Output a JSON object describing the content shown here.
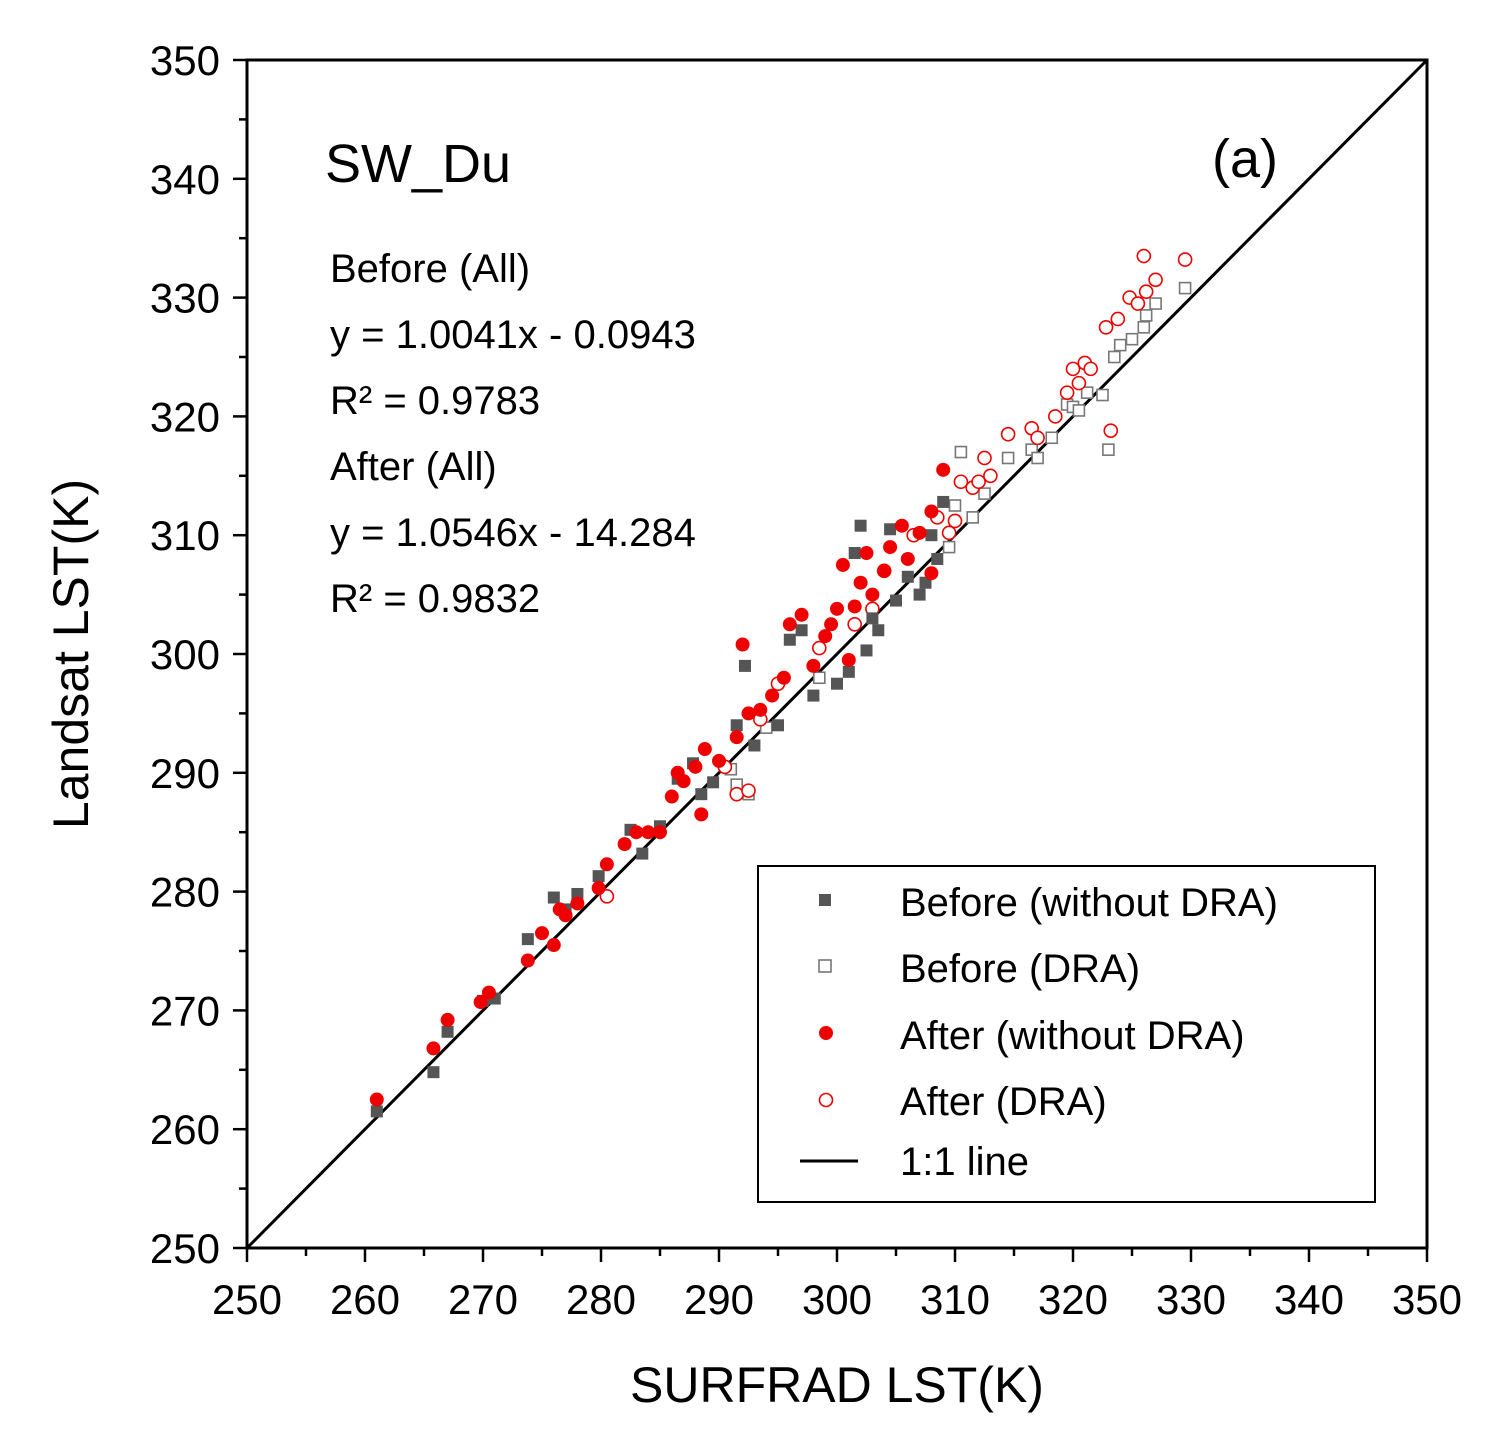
{
  "chart_data": {
    "type": "scatter",
    "title": "SW_Du",
    "panel_label": "(a)",
    "xlabel": "SURFRAD LST(K)",
    "ylabel": "Landsat LST(K)",
    "xlim": [
      250,
      350
    ],
    "ylim": [
      250,
      350
    ],
    "xticks": [
      "250",
      "260",
      "270",
      "280",
      "290",
      "300",
      "310",
      "320",
      "330",
      "340",
      "350"
    ],
    "yticks": [
      "250",
      "260",
      "270",
      "280",
      "290",
      "300",
      "310",
      "320",
      "330",
      "340",
      "350"
    ],
    "annotations": [
      "Before (All)",
      "y = 1.0041x - 0.0943",
      "R² = 0.9783",
      "After (All)",
      "y = 1.0546x - 14.284",
      "R² = 0.9832"
    ],
    "legend": [
      {
        "label": "Before (without DRA)",
        "marker": "filled-square"
      },
      {
        "label": "Before (DRA)",
        "marker": "open-square"
      },
      {
        "label": "After (without DRA)",
        "marker": "filled-circle"
      },
      {
        "label": "After (DRA)",
        "marker": "open-circle"
      },
      {
        "label": "1:1 line",
        "marker": "line"
      }
    ],
    "legend_position": "bottom-right",
    "colors": {
      "before": "#555555",
      "before_dra": "#777777",
      "after": "#ee0000",
      "line": "#000000"
    },
    "series": [
      {
        "name": "Before (without DRA)",
        "points": [
          [
            261,
            261.5
          ],
          [
            265.8,
            264.8
          ],
          [
            267,
            268.2
          ],
          [
            270,
            270.8
          ],
          [
            271,
            271
          ],
          [
            273.8,
            276
          ],
          [
            276,
            279.5
          ],
          [
            277,
            278.5
          ],
          [
            278,
            279.8
          ],
          [
            279.8,
            281.3
          ],
          [
            282.5,
            285.2
          ],
          [
            283.5,
            283.2
          ],
          [
            285,
            285.5
          ],
          [
            286.5,
            289.5
          ],
          [
            287.8,
            290.8
          ],
          [
            288.5,
            288.2
          ],
          [
            289.5,
            289.2
          ],
          [
            291.5,
            294
          ],
          [
            292.2,
            299
          ],
          [
            293,
            292.3
          ],
          [
            295,
            294
          ],
          [
            296,
            301.2
          ],
          [
            297,
            302
          ],
          [
            298,
            296.5
          ],
          [
            300,
            297.5
          ],
          [
            301,
            298.5
          ],
          [
            301.5,
            308.5
          ],
          [
            302,
            310.8
          ],
          [
            302.5,
            300.3
          ],
          [
            303,
            303
          ],
          [
            303.5,
            302
          ],
          [
            304.5,
            310.5
          ],
          [
            305,
            304.5
          ],
          [
            306,
            306.5
          ],
          [
            307,
            305
          ],
          [
            307.5,
            306
          ],
          [
            308,
            310
          ],
          [
            308.5,
            308
          ],
          [
            309,
            312.8
          ]
        ]
      },
      {
        "name": "Before (DRA)",
        "points": [
          [
            291,
            290.3
          ],
          [
            291.5,
            289
          ],
          [
            292.5,
            288.2
          ],
          [
            294,
            293.8
          ],
          [
            298.5,
            298
          ],
          [
            309.5,
            309
          ],
          [
            310,
            312.5
          ],
          [
            310.5,
            317
          ],
          [
            311.5,
            311.5
          ],
          [
            312.5,
            313.5
          ],
          [
            314.5,
            316.5
          ],
          [
            316.5,
            317.2
          ],
          [
            317,
            316.5
          ],
          [
            318.2,
            318.2
          ],
          [
            319.5,
            321
          ],
          [
            320,
            320.8
          ],
          [
            320.5,
            320.5
          ],
          [
            321.2,
            322
          ],
          [
            322.5,
            321.8
          ],
          [
            323,
            317.2
          ],
          [
            323.5,
            325
          ],
          [
            324,
            326
          ],
          [
            325,
            326.5
          ],
          [
            326,
            327.5
          ],
          [
            326.2,
            328.5
          ],
          [
            327,
            329.5
          ],
          [
            329.5,
            330.8
          ]
        ]
      },
      {
        "name": "After (without DRA)",
        "points": [
          [
            261,
            262.5
          ],
          [
            265.8,
            266.8
          ],
          [
            267,
            269.2
          ],
          [
            269.8,
            270.7
          ],
          [
            270.5,
            271.5
          ],
          [
            273.8,
            274.2
          ],
          [
            275,
            276.5
          ],
          [
            276,
            275.5
          ],
          [
            276.5,
            278.5
          ],
          [
            277,
            278
          ],
          [
            278,
            279
          ],
          [
            279.8,
            280.3
          ],
          [
            280.5,
            282.3
          ],
          [
            282,
            284
          ],
          [
            283,
            285
          ],
          [
            284,
            285
          ],
          [
            285,
            285
          ],
          [
            286,
            288
          ],
          [
            286.5,
            290
          ],
          [
            287,
            289.3
          ],
          [
            288,
            290.5
          ],
          [
            288.5,
            286.5
          ],
          [
            288.8,
            292
          ],
          [
            290,
            291
          ],
          [
            291.5,
            293
          ],
          [
            292,
            300.8
          ],
          [
            292.5,
            295
          ],
          [
            293.5,
            295.3
          ],
          [
            294.5,
            296.5
          ],
          [
            295.5,
            298
          ],
          [
            296,
            302.5
          ],
          [
            297,
            303.3
          ],
          [
            298,
            299
          ],
          [
            299,
            301.5
          ],
          [
            299.5,
            302.5
          ],
          [
            300,
            303.8
          ],
          [
            300.5,
            307.5
          ],
          [
            301,
            299.5
          ],
          [
            301.5,
            304
          ],
          [
            302,
            306
          ],
          [
            302.5,
            308.5
          ],
          [
            303,
            305
          ],
          [
            304,
            307
          ],
          [
            304.5,
            309
          ],
          [
            305.5,
            310.8
          ],
          [
            306,
            308
          ],
          [
            307,
            310.2
          ],
          [
            308,
            312
          ],
          [
            308,
            306.8
          ],
          [
            309,
            315.5
          ]
        ]
      },
      {
        "name": "After (DRA)",
        "points": [
          [
            280.5,
            279.6
          ],
          [
            290.5,
            290.5
          ],
          [
            291.5,
            288.2
          ],
          [
            292.5,
            288.5
          ],
          [
            293.5,
            294.5
          ],
          [
            295,
            297.5
          ],
          [
            298.5,
            300.5
          ],
          [
            301.5,
            302.5
          ],
          [
            303,
            303.8
          ],
          [
            304,
            307
          ],
          [
            306.5,
            310
          ],
          [
            308.5,
            311.5
          ],
          [
            309.5,
            310.2
          ],
          [
            310,
            311.2
          ],
          [
            310.5,
            314.5
          ],
          [
            311.5,
            314
          ],
          [
            312,
            314.5
          ],
          [
            312.5,
            316.5
          ],
          [
            313,
            315
          ],
          [
            314.5,
            318.5
          ],
          [
            316.5,
            319
          ],
          [
            317,
            318.2
          ],
          [
            318.5,
            320
          ],
          [
            319.5,
            322
          ],
          [
            320,
            324
          ],
          [
            320.5,
            322.8
          ],
          [
            321,
            324.5
          ],
          [
            321.5,
            324
          ],
          [
            322.8,
            327.5
          ],
          [
            323.2,
            318.8
          ],
          [
            323.8,
            328.2
          ],
          [
            324.8,
            330
          ],
          [
            325.5,
            329.5
          ],
          [
            326,
            333.5
          ],
          [
            326.2,
            330.5
          ],
          [
            327,
            331.5
          ],
          [
            329.5,
            333.2
          ]
        ]
      }
    ]
  }
}
